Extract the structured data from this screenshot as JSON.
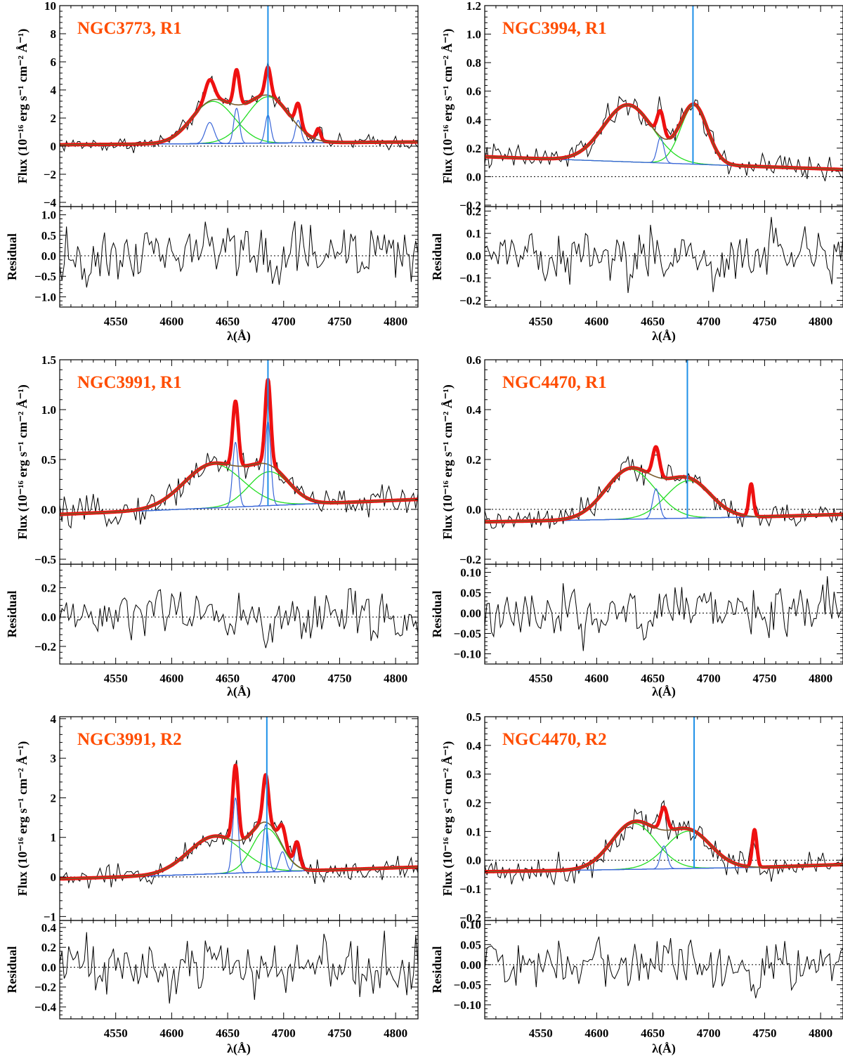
{
  "figure": {
    "description_free": true,
    "x_axis_label": "λ(Å)",
    "flux_label": "Flux (10⁻¹⁶ erg s⁻¹ cm⁻² Å⁻¹)",
    "residual_label": "Residual",
    "colors": {
      "observed": "#000000",
      "total_fit": "#ee1111",
      "continuum_fit": "#7a5a2a",
      "broad_component": "#22dd22",
      "narrow_component": "#3a66d8",
      "marker_line": "#1e90e8",
      "title": "#ff4d00"
    }
  },
  "chart_data": [
    {
      "type": "line",
      "title": "NGC3773, R1",
      "xlabel": "λ(Å)",
      "ylabel": "Flux (10⁻¹⁶ erg s⁻¹ cm⁻² Å⁻¹)",
      "xlim": [
        4500,
        4820
      ],
      "xticks": [
        4550,
        4600,
        4650,
        4700,
        4750,
        4800
      ],
      "ylim": [
        -4.3,
        10
      ],
      "yticks": [
        -4,
        -2,
        0,
        2,
        4,
        6,
        8,
        10
      ],
      "ytick_labels": [
        "−4",
        "−2",
        "0",
        "2",
        "4",
        "6",
        "8",
        "10"
      ],
      "continuum": [
        [
          4500,
          0.1
        ],
        [
          4820,
          0.3
        ]
      ],
      "broad": [
        {
          "center": 4637,
          "amp": 3.0,
          "sigma": 19
        },
        {
          "center": 4686,
          "amp": 3.3,
          "sigma": 19
        }
      ],
      "narrow": [
        {
          "center": 4634,
          "amp": 1.5,
          "sigma": 4
        },
        {
          "center": 4658,
          "amp": 2.5,
          "sigma": 2.5
        },
        {
          "center": 4686,
          "amp": 2.0,
          "sigma": 2.5
        },
        {
          "center": 4713,
          "amp": 1.6,
          "sigma": 2.5
        },
        {
          "center": 4731,
          "amp": 0.8,
          "sigma": 2
        }
      ],
      "marker_x": 4686,
      "noise": 0.45,
      "residual": {
        "ylim": [
          -1.25,
          1.2
        ],
        "yticks": [
          -1.0,
          -0.5,
          0.0,
          0.5,
          1.0
        ],
        "ytick_labels": [
          "−1.0",
          "−0.5",
          "0.0",
          "0.5",
          "1.0"
        ],
        "amplitude": 0.5
      }
    },
    {
      "type": "line",
      "title": "NGC3994, R1",
      "xlabel": "λ(Å)",
      "ylabel": "Flux (10⁻¹⁶ erg s⁻¹ cm⁻² Å⁻¹)",
      "xlim": [
        4500,
        4820
      ],
      "xticks": [
        4550,
        4600,
        4650,
        4700,
        4750,
        4800
      ],
      "ylim": [
        -0.21,
        1.2
      ],
      "yticks": [
        -0.2,
        0.0,
        0.2,
        0.4,
        0.6,
        0.8,
        1.0,
        1.2
      ],
      "ytick_labels": [
        "−0.2",
        "0.0",
        "0.2",
        "0.4",
        "0.6",
        "0.8",
        "1.0",
        "1.2"
      ],
      "continuum": [
        [
          4500,
          0.14
        ],
        [
          4820,
          0.05
        ]
      ],
      "broad": [
        {
          "center": 4628,
          "amp": 0.4,
          "sigma": 22
        },
        {
          "center": 4687,
          "amp": 0.41,
          "sigma": 12
        }
      ],
      "narrow": [
        {
          "center": 4657,
          "amp": 0.18,
          "sigma": 3
        }
      ],
      "marker_x": 4686,
      "noise": 0.08,
      "residual": {
        "ylim": [
          -0.23,
          0.22
        ],
        "yticks": [
          -0.2,
          -0.1,
          0.0,
          0.1,
          0.2
        ],
        "ytick_labels": [
          "−0.2",
          "−0.1",
          "0.0",
          "0.1",
          "0.2"
        ],
        "amplitude": 0.1
      }
    },
    {
      "type": "line",
      "title": "NGC3991, R1",
      "xlabel": "λ(Å)",
      "ylabel": "Flux (10⁻¹⁶ erg s⁻¹ cm⁻² Å⁻¹)",
      "xlim": [
        4500,
        4820
      ],
      "xticks": [
        4550,
        4600,
        4650,
        4700,
        4750,
        4800
      ],
      "ylim": [
        -0.55,
        1.5
      ],
      "yticks": [
        -0.5,
        0.0,
        0.5,
        1.0,
        1.5
      ],
      "ytick_labels": [
        "−0.5",
        "0.0",
        "0.5",
        "1.0",
        "1.5"
      ],
      "continuum": [
        [
          4500,
          -0.05
        ],
        [
          4820,
          0.1
        ]
      ],
      "broad": [
        {
          "center": 4637,
          "amp": 0.44,
          "sigma": 26
        },
        {
          "center": 4687,
          "amp": 0.34,
          "sigma": 18
        }
      ],
      "narrow": [
        {
          "center": 4657,
          "amp": 0.65,
          "sigma": 2.5
        },
        {
          "center": 4686,
          "amp": 0.85,
          "sigma": 2.5
        }
      ],
      "marker_x": 4686,
      "noise": 0.12,
      "residual": {
        "ylim": [
          -0.32,
          0.36
        ],
        "yticks": [
          -0.2,
          0.0,
          0.2
        ],
        "ytick_labels": [
          "−0.2",
          "0.0",
          "0.2"
        ],
        "amplitude": 0.13
      }
    },
    {
      "type": "line",
      "title": "NGC4470, R1",
      "xlabel": "λ(Å)",
      "ylabel": "Flux (10⁻¹⁶ erg s⁻¹ cm⁻² Å⁻¹)",
      "xlim": [
        4500,
        4820
      ],
      "xticks": [
        4550,
        4600,
        4650,
        4700,
        4750,
        4800
      ],
      "ylim": [
        -0.22,
        0.6
      ],
      "yticks": [
        -0.2,
        0.0,
        0.2,
        0.4,
        0.6
      ],
      "ytick_labels": [
        "−0.2",
        "0.0",
        "0.2",
        "0.4",
        "0.6"
      ],
      "continuum": [
        [
          4500,
          -0.05
        ],
        [
          4745,
          -0.03
        ],
        [
          4820,
          -0.02
        ]
      ],
      "broad": [
        {
          "center": 4630,
          "amp": 0.2,
          "sigma": 22
        },
        {
          "center": 4682,
          "amp": 0.15,
          "sigma": 20
        }
      ],
      "narrow": [
        {
          "center": 4653,
          "amp": 0.12,
          "sigma": 3
        },
        {
          "center": 4738,
          "amp": 0.13,
          "sigma": 2
        }
      ],
      "marker_x": 4681,
      "noise": 0.04,
      "residual": {
        "ylim": [
          -0.125,
          0.12
        ],
        "yticks": [
          -0.1,
          -0.05,
          0.0,
          0.05,
          0.1
        ],
        "ytick_labels": [
          "−0.10",
          "−0.05",
          "0.00",
          "0.05",
          "0.10"
        ],
        "amplitude": 0.05
      }
    },
    {
      "type": "line",
      "title": "NGC3991, R2",
      "xlabel": "λ(Å)",
      "ylabel": "Flux (10⁻¹⁶ erg s⁻¹ cm⁻² Å⁻¹)",
      "xlim": [
        4500,
        4820
      ],
      "xticks": [
        4550,
        4600,
        4650,
        4700,
        4750,
        4800
      ],
      "ylim": [
        -1.1,
        4.05
      ],
      "yticks": [
        -1,
        0,
        1,
        2,
        3,
        4
      ],
      "ytick_labels": [
        "−1",
        "0",
        "1",
        "2",
        "3",
        "4"
      ],
      "continuum": [
        [
          4500,
          -0.05
        ],
        [
          4820,
          0.25
        ]
      ],
      "broad": [
        {
          "center": 4639,
          "amp": 0.95,
          "sigma": 24
        },
        {
          "center": 4685,
          "amp": 1.1,
          "sigma": 13
        }
      ],
      "narrow": [
        {
          "center": 4657,
          "amp": 1.9,
          "sigma": 2.5
        },
        {
          "center": 4684,
          "amp": 1.2,
          "sigma": 2.5
        },
        {
          "center": 4699,
          "amp": 0.5,
          "sigma": 3
        },
        {
          "center": 4712,
          "amp": 0.6,
          "sigma": 2.5
        }
      ],
      "marker_x": 4685,
      "noise": 0.25,
      "residual": {
        "ylim": [
          -0.52,
          0.47
        ],
        "yticks": [
          -0.4,
          -0.2,
          0.0,
          0.2,
          0.4
        ],
        "ytick_labels": [
          "−0.4",
          "−0.2",
          "0.0",
          "0.2",
          "0.4"
        ],
        "amplitude": 0.2
      }
    },
    {
      "type": "line",
      "title": "NGC4470, R2",
      "xlabel": "λ(Å)",
      "ylabel": "Flux (10⁻¹⁶ erg s⁻¹ cm⁻² Å⁻¹)",
      "xlim": [
        4500,
        4820
      ],
      "xticks": [
        4550,
        4600,
        4650,
        4700,
        4750,
        4800
      ],
      "ylim": [
        -0.21,
        0.5
      ],
      "yticks": [
        -0.2,
        -0.1,
        0.0,
        0.1,
        0.2,
        0.3,
        0.4,
        0.5
      ],
      "ytick_labels": [
        "−0.2",
        "−0.1",
        "0.0",
        "0.1",
        "0.2",
        "0.3",
        "0.4",
        "0.5"
      ],
      "continuum": [
        [
          4500,
          -0.04
        ],
        [
          4745,
          -0.025
        ],
        [
          4820,
          -0.015
        ]
      ],
      "broad": [
        {
          "center": 4633,
          "amp": 0.16,
          "sigma": 20
        },
        {
          "center": 4682,
          "amp": 0.13,
          "sigma": 20
        }
      ],
      "narrow": [
        {
          "center": 4660,
          "amp": 0.08,
          "sigma": 3
        },
        {
          "center": 4741,
          "amp": 0.13,
          "sigma": 2
        }
      ],
      "marker_x": 4687,
      "noise": 0.045,
      "residual": {
        "ylim": [
          -0.135,
          0.11
        ],
        "yticks": [
          -0.1,
          -0.05,
          0.0,
          0.05,
          0.1
        ],
        "ytick_labels": [
          "−0.10",
          "−0.05",
          "0.00",
          "0.05",
          "0.10"
        ],
        "amplitude": 0.05
      }
    }
  ]
}
